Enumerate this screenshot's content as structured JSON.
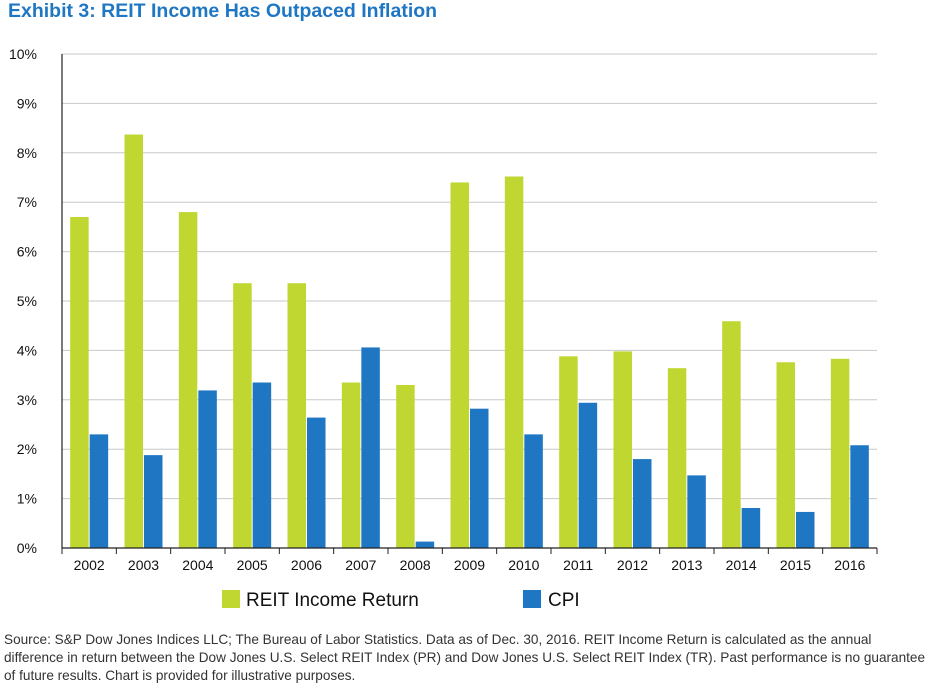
{
  "title": "Exhibit 3: REIT Income Has Outpaced Inflation",
  "colors": {
    "title": "#1f77c4",
    "reit": "#bfd730",
    "cpi": "#1f77c4",
    "grid": "#c8c8c8",
    "axis": "#222222"
  },
  "chart_data": {
    "type": "bar",
    "title": "Exhibit 3: REIT Income Has Outpaced Inflation",
    "categories": [
      "2002",
      "2003",
      "2004",
      "2005",
      "2006",
      "2007",
      "2008",
      "2009",
      "2010",
      "2011",
      "2012",
      "2013",
      "2014",
      "2015",
      "2016"
    ],
    "series": [
      {
        "name": "REIT Income Return",
        "color": "#bfd730",
        "values": [
          6.7,
          8.37,
          6.8,
          5.36,
          5.36,
          3.35,
          3.3,
          7.4,
          7.52,
          3.88,
          3.98,
          3.64,
          4.59,
          3.76,
          3.83
        ]
      },
      {
        "name": "CPI",
        "color": "#1f77c4",
        "values": [
          2.3,
          1.88,
          3.19,
          3.35,
          2.64,
          4.06,
          0.13,
          2.82,
          2.3,
          2.94,
          1.8,
          1.47,
          0.81,
          0.73,
          2.08
        ]
      }
    ],
    "ylim": [
      0,
      10
    ],
    "yticks": [
      0,
      1,
      2,
      3,
      4,
      5,
      6,
      7,
      8,
      9,
      10
    ],
    "ytick_labels": [
      "0%",
      "1%",
      "2%",
      "3%",
      "4%",
      "5%",
      "6%",
      "7%",
      "8%",
      "9%",
      "10%"
    ],
    "xlabel": "",
    "ylabel": "",
    "grid": true,
    "legend_position": "bottom"
  },
  "source_text": "Source: S&P Dow Jones Indices LLC; The Bureau of Labor Statistics. Data as of Dec. 30, 2016. REIT Income Return is calculated as the annual difference in return between the Dow Jones U.S. Select REIT Index (PR) and Dow Jones U.S. Select REIT Index (TR). Past performance is no guarantee of future results. Chart is provided for illustrative purposes."
}
